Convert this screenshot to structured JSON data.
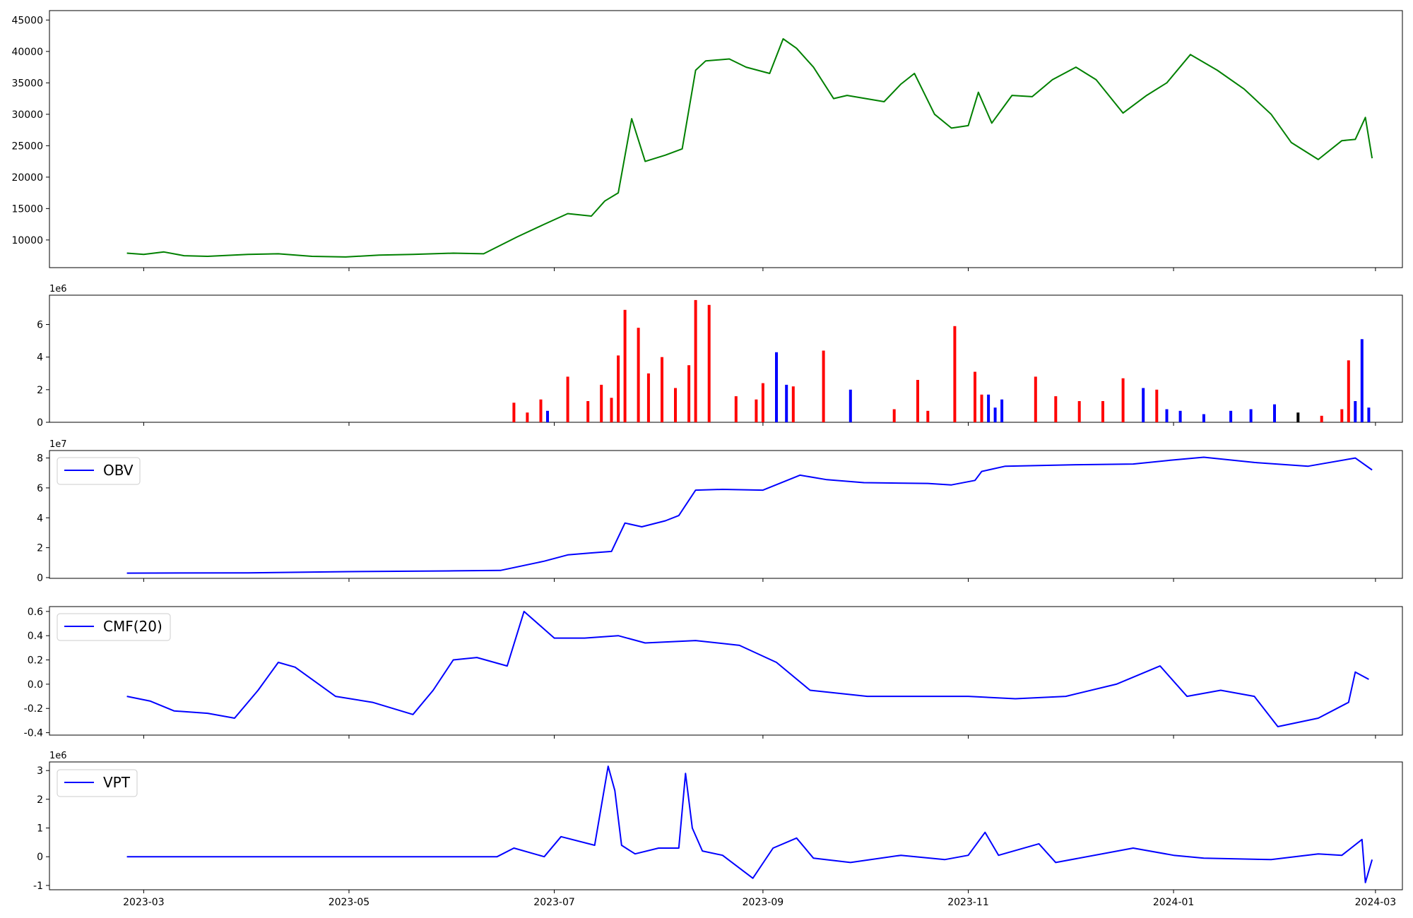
{
  "figure": {
    "x_ticks": [
      "2023-03",
      "2023-05",
      "2023-07",
      "2023-09",
      "2023-11",
      "2024-01",
      "2024-03"
    ],
    "x_range": [
      "2023-02-01",
      "2024-03-09"
    ]
  },
  "colors": {
    "price_line": "#008000",
    "volume_up": "#0000ff",
    "volume_down": "#ff0000",
    "volume_flat": "#000000",
    "indicator_line": "#0000ff"
  },
  "chart_data": [
    {
      "type": "line",
      "name": "price",
      "grid": false,
      "y_ticks": [
        "10000",
        "15000",
        "20000",
        "25000",
        "30000",
        "35000",
        "40000",
        "45000"
      ],
      "ylim": [
        5600,
        46500
      ],
      "series": [
        {
          "color": "#008000",
          "x": [
            "2023-02-24",
            "2023-03-01",
            "2023-03-07",
            "2023-03-13",
            "2023-03-20",
            "2023-04-01",
            "2023-04-10",
            "2023-04-20",
            "2023-04-30",
            "2023-05-10",
            "2023-05-20",
            "2023-06-01",
            "2023-06-10",
            "2023-06-20",
            "2023-06-28",
            "2023-07-05",
            "2023-07-12",
            "2023-07-16",
            "2023-07-20",
            "2023-07-24",
            "2023-07-28",
            "2023-08-03",
            "2023-08-08",
            "2023-08-12",
            "2023-08-15",
            "2023-08-22",
            "2023-08-27",
            "2023-09-03",
            "2023-09-07",
            "2023-09-11",
            "2023-09-16",
            "2023-09-22",
            "2023-09-26",
            "2023-10-07",
            "2023-10-12",
            "2023-10-16",
            "2023-10-22",
            "2023-10-27",
            "2023-11-01",
            "2023-11-04",
            "2023-11-08",
            "2023-11-14",
            "2023-11-20",
            "2023-11-26",
            "2023-12-03",
            "2023-12-09",
            "2023-12-17",
            "2023-12-24",
            "2023-12-30",
            "2024-01-06",
            "2024-01-14",
            "2024-01-22",
            "2024-01-30",
            "2024-02-05",
            "2024-02-13",
            "2024-02-20",
            "2024-02-24",
            "2024-02-27",
            "2024-02-29"
          ],
          "y": [
            7900,
            7700,
            8100,
            7500,
            7400,
            7700,
            7800,
            7400,
            7300,
            7600,
            7700,
            7900,
            7800,
            10500,
            12500,
            14200,
            13800,
            16200,
            17500,
            29300,
            22500,
            23500,
            24500,
            37000,
            38500,
            38800,
            37500,
            36500,
            42000,
            40500,
            37500,
            32500,
            33000,
            32000,
            34800,
            36500,
            30000,
            27800,
            28200,
            33500,
            28600,
            33000,
            32800,
            35500,
            37500,
            35500,
            30200,
            33000,
            35000,
            39500,
            37000,
            34000,
            30000,
            25500,
            22800,
            25800,
            26000,
            29500,
            23000
          ]
        }
      ]
    },
    {
      "type": "bar",
      "name": "volume",
      "grid": false,
      "y_ticks": [
        "0",
        "2",
        "4",
        "6"
      ],
      "multiplier": "1e6",
      "ylim": [
        0,
        7.8
      ],
      "x": [
        "2023-06-19",
        "2023-06-23",
        "2023-06-27",
        "2023-06-29",
        "2023-07-05",
        "2023-07-11",
        "2023-07-15",
        "2023-07-18",
        "2023-07-20",
        "2023-07-22",
        "2023-07-26",
        "2023-07-29",
        "2023-08-02",
        "2023-08-06",
        "2023-08-10",
        "2023-08-12",
        "2023-08-16",
        "2023-08-24",
        "2023-08-30",
        "2023-09-01",
        "2023-09-05",
        "2023-09-08",
        "2023-09-10",
        "2023-09-19",
        "2023-09-27",
        "2023-10-10",
        "2023-10-17",
        "2023-10-20",
        "2023-10-28",
        "2023-11-03",
        "2023-11-05",
        "2023-11-07",
        "2023-11-09",
        "2023-11-11",
        "2023-11-21",
        "2023-11-27",
        "2023-12-04",
        "2023-12-11",
        "2023-12-17",
        "2023-12-23",
        "2023-12-27",
        "2023-12-30",
        "2024-01-03",
        "2024-01-10",
        "2024-01-18",
        "2024-01-24",
        "2024-01-31",
        "2024-02-07",
        "2024-02-14",
        "2024-02-20",
        "2024-02-22",
        "2024-02-24",
        "2024-02-26",
        "2024-02-28"
      ],
      "values": [
        1.2,
        0.6,
        1.4,
        0.7,
        2.8,
        1.3,
        2.3,
        1.5,
        4.1,
        6.9,
        5.8,
        3.0,
        4.0,
        2.1,
        3.5,
        7.5,
        7.2,
        1.6,
        1.4,
        2.4,
        4.3,
        2.3,
        2.2,
        4.4,
        2.0,
        0.8,
        2.6,
        0.7,
        5.9,
        3.1,
        1.7,
        1.7,
        0.9,
        1.4,
        2.8,
        1.6,
        1.3,
        1.3,
        2.7,
        2.1,
        2.0,
        0.8,
        0.7,
        0.5,
        0.7,
        0.8,
        1.1,
        0.6,
        0.4,
        0.8,
        3.8,
        1.3,
        5.1,
        0.9
      ],
      "direction": [
        "down",
        "down",
        "down",
        "up",
        "down",
        "down",
        "down",
        "down",
        "down",
        "down",
        "down",
        "down",
        "down",
        "down",
        "down",
        "down",
        "down",
        "down",
        "down",
        "down",
        "up",
        "up",
        "down",
        "down",
        "up",
        "down",
        "down",
        "down",
        "down",
        "down",
        "down",
        "up",
        "up",
        "up",
        "down",
        "down",
        "down",
        "down",
        "down",
        "up",
        "down",
        "up",
        "up",
        "up",
        "up",
        "up",
        "up",
        "flat",
        "down",
        "down",
        "down",
        "up",
        "up",
        "up"
      ]
    },
    {
      "type": "line",
      "name": "obv",
      "grid": false,
      "legend": "top-left",
      "y_ticks": [
        "0",
        "2",
        "4",
        "6",
        "8"
      ],
      "multiplier": "1e7",
      "ylim": [
        -0.05,
        8.5
      ],
      "series": [
        {
          "name": "OBV",
          "color": "#0000ff",
          "x": [
            "2023-02-24",
            "2023-04-01",
            "2023-05-01",
            "2023-06-01",
            "2023-06-15",
            "2023-06-28",
            "2023-07-05",
            "2023-07-12",
            "2023-07-18",
            "2023-07-22",
            "2023-07-27",
            "2023-08-03",
            "2023-08-07",
            "2023-08-12",
            "2023-08-20",
            "2023-09-01",
            "2023-09-12",
            "2023-09-20",
            "2023-10-01",
            "2023-10-20",
            "2023-10-27",
            "2023-11-03",
            "2023-11-05",
            "2023-11-12",
            "2023-12-03",
            "2023-12-20",
            "2023-12-31",
            "2024-01-10",
            "2024-01-25",
            "2024-02-10",
            "2024-02-24",
            "2024-02-29"
          ],
          "y": [
            0.3,
            0.32,
            0.4,
            0.45,
            0.48,
            1.1,
            1.52,
            1.65,
            1.75,
            3.65,
            3.4,
            3.8,
            4.15,
            5.85,
            5.9,
            5.85,
            6.85,
            6.55,
            6.35,
            6.3,
            6.2,
            6.5,
            7.1,
            7.45,
            7.55,
            7.6,
            7.85,
            8.05,
            7.7,
            7.45,
            8.0,
            7.2
          ]
        }
      ]
    },
    {
      "type": "line",
      "name": "cmf",
      "grid": false,
      "legend": "top-left",
      "y_ticks": [
        "-0.4",
        "-0.2",
        "0.0",
        "0.2",
        "0.4",
        "0.6"
      ],
      "ylim": [
        -0.42,
        0.64
      ],
      "series": [
        {
          "name": "CMF(20)",
          "color": "#0000ff",
          "x": [
            "2023-02-24",
            "2023-03-03",
            "2023-03-10",
            "2023-03-20",
            "2023-03-28",
            "2023-04-04",
            "2023-04-10",
            "2023-04-15",
            "2023-04-27",
            "2023-05-08",
            "2023-05-20",
            "2023-05-26",
            "2023-06-01",
            "2023-06-08",
            "2023-06-17",
            "2023-06-22",
            "2023-07-01",
            "2023-07-10",
            "2023-07-20",
            "2023-07-28",
            "2023-08-12",
            "2023-08-25",
            "2023-09-05",
            "2023-09-15",
            "2023-10-02",
            "2023-10-15",
            "2023-11-01",
            "2023-11-15",
            "2023-11-30",
            "2023-12-15",
            "2023-12-28",
            "2024-01-05",
            "2024-01-15",
            "2024-01-25",
            "2024-02-01",
            "2024-02-13",
            "2024-02-22",
            "2024-02-24",
            "2024-02-28"
          ],
          "y": [
            -0.1,
            -0.14,
            -0.22,
            -0.24,
            -0.28,
            -0.05,
            0.18,
            0.14,
            -0.1,
            -0.15,
            -0.25,
            -0.05,
            0.2,
            0.22,
            0.15,
            0.6,
            0.38,
            0.38,
            0.4,
            0.34,
            0.36,
            0.32,
            0.18,
            -0.05,
            -0.1,
            -0.1,
            -0.1,
            -0.12,
            -0.1,
            0.0,
            0.15,
            -0.1,
            -0.05,
            -0.1,
            -0.35,
            -0.28,
            -0.15,
            0.1,
            0.04
          ]
        }
      ]
    },
    {
      "type": "line",
      "name": "vpt",
      "grid": false,
      "legend": "top-left",
      "x_ticks_shown": true,
      "y_ticks": [
        "-1",
        "0",
        "1",
        "2",
        "3"
      ],
      "multiplier": "1e6",
      "ylim": [
        -1.15,
        3.3
      ],
      "series": [
        {
          "name": "VPT",
          "color": "#0000ff",
          "x": [
            "2023-02-24",
            "2023-06-14",
            "2023-06-19",
            "2023-06-28",
            "2023-07-03",
            "2023-07-13",
            "2023-07-17",
            "2023-07-19",
            "2023-07-21",
            "2023-07-25",
            "2023-08-01",
            "2023-08-07",
            "2023-08-09",
            "2023-08-11",
            "2023-08-14",
            "2023-08-20",
            "2023-08-29",
            "2023-09-04",
            "2023-09-11",
            "2023-09-16",
            "2023-09-27",
            "2023-10-12",
            "2023-10-25",
            "2023-11-01",
            "2023-11-06",
            "2023-11-10",
            "2023-11-22",
            "2023-11-27",
            "2023-12-20",
            "2024-01-01",
            "2024-01-10",
            "2024-01-30",
            "2024-02-13",
            "2024-02-20",
            "2024-02-26",
            "2024-02-27",
            "2024-02-29"
          ],
          "y": [
            0.0,
            0.0,
            0.3,
            0.0,
            0.7,
            0.4,
            3.15,
            2.3,
            0.4,
            0.1,
            0.3,
            0.3,
            2.9,
            1.0,
            0.2,
            0.05,
            -0.75,
            0.3,
            0.65,
            -0.05,
            -0.2,
            0.05,
            -0.1,
            0.05,
            0.85,
            0.05,
            0.45,
            -0.2,
            0.3,
            0.05,
            -0.05,
            -0.1,
            0.1,
            0.05,
            0.6,
            -0.9,
            -0.1
          ]
        }
      ]
    }
  ]
}
